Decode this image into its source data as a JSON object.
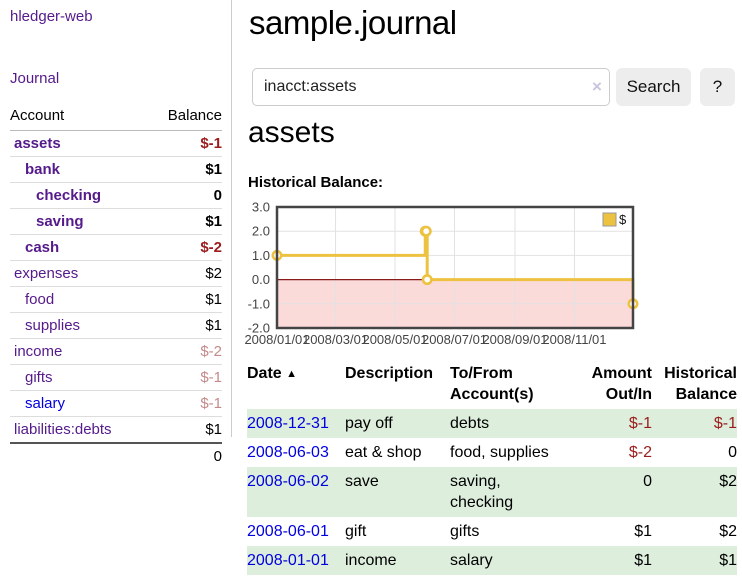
{
  "app": {
    "brand": "hledger-web",
    "nav_journal": "Journal"
  },
  "colors": {
    "link_purple": "#551a8b",
    "link_blue": "#0000e0",
    "negative": "#9b1c1c",
    "pale_negative": "#c48a8a",
    "row_stripe_green": "#ddeedd",
    "chart_line": "#edc240",
    "chart_negative_fill": "#fbdada",
    "chart_zero_line": "#8b1a1a"
  },
  "sidebar": {
    "headers": {
      "account": "Account",
      "balance": "Balance"
    },
    "accounts": [
      {
        "name": "assets",
        "balance": "$-1",
        "indent": 1,
        "bold": true,
        "balance_style": "neg",
        "link": "purple"
      },
      {
        "name": "bank",
        "balance": "$1",
        "indent": 2,
        "bold": true,
        "balance_style": "",
        "link": "purple"
      },
      {
        "name": "checking",
        "balance": "0",
        "indent": 3,
        "bold": true,
        "balance_style": "",
        "link": "purple"
      },
      {
        "name": "saving",
        "balance": "$1",
        "indent": 3,
        "bold": true,
        "balance_style": "",
        "link": "purple"
      },
      {
        "name": "cash",
        "balance": "$-2",
        "indent": 2,
        "bold": true,
        "balance_style": "neg",
        "link": "purple"
      },
      {
        "name": "expenses",
        "balance": "$2",
        "indent": 1,
        "bold": false,
        "balance_style": "",
        "link": "purple"
      },
      {
        "name": "food",
        "balance": "$1",
        "indent": 2,
        "bold": false,
        "balance_style": "",
        "link": "purple"
      },
      {
        "name": "supplies",
        "balance": "$1",
        "indent": 2,
        "bold": false,
        "balance_style": "",
        "link": "purple"
      },
      {
        "name": "income",
        "balance": "$-2",
        "indent": 1,
        "bold": false,
        "balance_style": "pneg",
        "link": "purple"
      },
      {
        "name": "gifts",
        "balance": "$-1",
        "indent": 2,
        "bold": false,
        "balance_style": "pneg",
        "link": "purple"
      },
      {
        "name": "salary",
        "balance": "$-1",
        "indent": 2,
        "bold": false,
        "balance_style": "pneg",
        "link": "blue"
      },
      {
        "name": "liabilities:debts",
        "balance": "$1",
        "indent": 1,
        "bold": false,
        "balance_style": "",
        "link": "purple"
      }
    ],
    "total": "0"
  },
  "header": {
    "title": "sample.journal"
  },
  "search": {
    "value": "inacct:assets",
    "clear_icon": "×",
    "button_label": "Search",
    "help_label": "?"
  },
  "account_page": {
    "title": "assets",
    "chart_label": "Historical Balance:"
  },
  "chart_data": {
    "type": "line",
    "title": "Historical Balance",
    "step": true,
    "series": [
      {
        "name": "$",
        "color": "#edc240",
        "points": [
          [
            "2008-01-01",
            1
          ],
          [
            "2008-06-01",
            2
          ],
          [
            "2008-06-02",
            2
          ],
          [
            "2008-06-03",
            0
          ],
          [
            "2008-12-31",
            -1
          ]
        ]
      }
    ],
    "xlim": [
      "2008-01-01",
      "2008-12-31"
    ],
    "ylim": [
      -2,
      3
    ],
    "yticks": [
      "3.0",
      "2.0",
      "1.0",
      "0.0",
      "-1.0",
      "-2.0"
    ],
    "ytick_values": [
      3,
      2,
      1,
      0,
      -1,
      -2
    ],
    "xticks": [
      "2008/01/01",
      "2008/03/01",
      "2008/05/01",
      "2008/07/01",
      "2008/09/01",
      "2008/11/01"
    ],
    "legend": {
      "label": "$",
      "position": "top-right"
    },
    "grid": true,
    "negative_region_shaded": true
  },
  "register": {
    "headers": {
      "date": "Date",
      "sort_icon": "▲",
      "description": "Description",
      "accounts": "To/From Account(s)",
      "amount": "Amount Out/In",
      "balance": "Historical Balance"
    },
    "rows": [
      {
        "date": "2008-12-31",
        "description": "pay off",
        "accounts": "debts",
        "amount": "$-1",
        "balance": "$-1",
        "amount_style": "neg",
        "balance_style": "neg",
        "stripe": true
      },
      {
        "date": "2008-06-03",
        "description": "eat & shop",
        "accounts": "food, supplies",
        "amount": "$-2",
        "balance": "0",
        "amount_style": "neg",
        "balance_style": "",
        "stripe": false
      },
      {
        "date": "2008-06-02",
        "description": "save",
        "accounts": "saving, checking",
        "amount": "0",
        "balance": "$2",
        "amount_style": "",
        "balance_style": "",
        "stripe": true
      },
      {
        "date": "2008-06-01",
        "description": "gift",
        "accounts": "gifts",
        "amount": "$1",
        "balance": "$2",
        "amount_style": "",
        "balance_style": "",
        "stripe": false
      },
      {
        "date": "2008-01-01",
        "description": "income",
        "accounts": "salary",
        "amount": "$1",
        "balance": "$1",
        "amount_style": "",
        "balance_style": "",
        "stripe": true
      }
    ]
  }
}
